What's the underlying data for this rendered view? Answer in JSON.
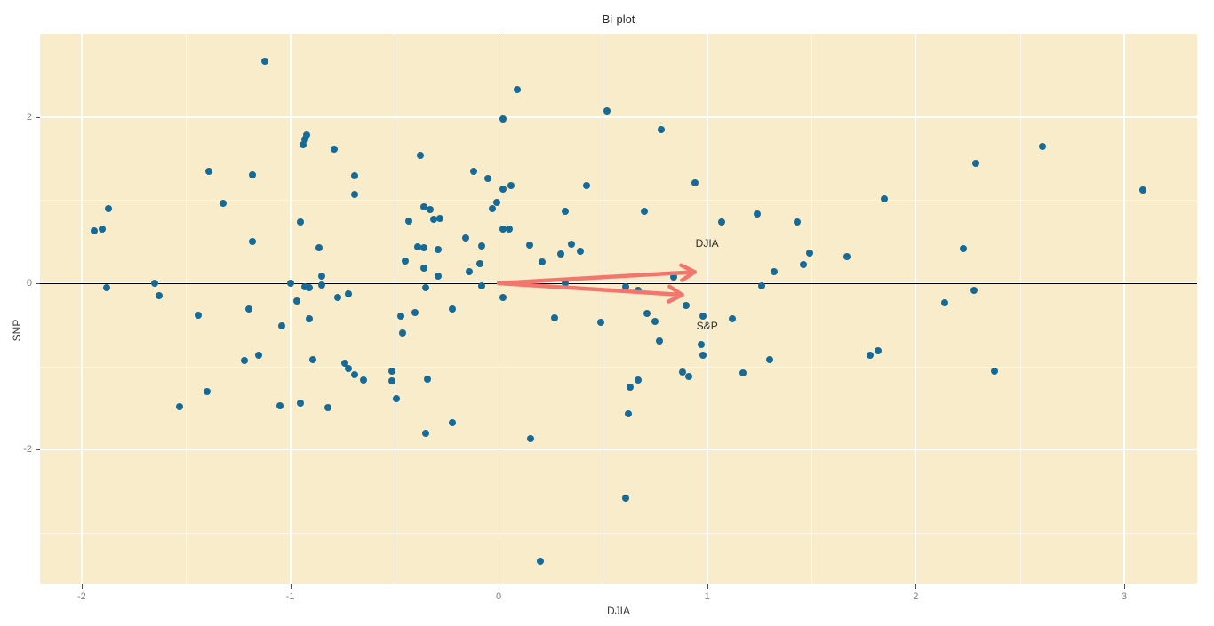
{
  "chart_data": {
    "type": "scatter",
    "title": "Bi-plot",
    "xlabel": "DJIA",
    "ylabel": "SNP",
    "xlim": [
      -2.2,
      3.35
    ],
    "ylim": [
      -3.62,
      3.0
    ],
    "x_ticks": [
      -2,
      -1,
      0,
      1,
      2,
      3
    ],
    "y_ticks": [
      -2,
      0,
      2
    ],
    "x_minor": [
      -1.5,
      -0.5,
      0.5,
      1.5,
      2.5
    ],
    "y_minor": [
      -3,
      -1,
      1
    ],
    "grid": "white major and minor gridlines on beige panel",
    "legend": "none",
    "origin_axes": true,
    "points": [
      [
        -1.12,
        2.67
      ],
      [
        0.09,
        2.33
      ],
      [
        0.52,
        2.07
      ],
      [
        0.02,
        1.98
      ],
      [
        0.78,
        1.85
      ],
      [
        2.61,
        1.64
      ],
      [
        -0.92,
        1.78
      ],
      [
        -0.93,
        1.73
      ],
      [
        -0.94,
        1.67
      ],
      [
        -0.79,
        1.61
      ],
      [
        -0.375,
        1.54
      ],
      [
        -1.39,
        1.35
      ],
      [
        -1.18,
        1.3
      ],
      [
        2.29,
        1.44
      ],
      [
        3.09,
        1.12
      ],
      [
        -0.69,
        1.29
      ],
      [
        -0.12,
        1.35
      ],
      [
        -0.05,
        1.26
      ],
      [
        0.02,
        1.13
      ],
      [
        0.06,
        1.17
      ],
      [
        0.42,
        1.17
      ],
      [
        0.94,
        1.21
      ],
      [
        1.85,
        1.01
      ],
      [
        -0.69,
        1.07
      ],
      [
        -1.32,
        0.96
      ],
      [
        -1.87,
        0.9
      ],
      [
        -0.95,
        0.74
      ],
      [
        -0.43,
        0.75
      ],
      [
        -0.36,
        0.92
      ],
      [
        -0.33,
        0.89
      ],
      [
        -0.31,
        0.77
      ],
      [
        -0.28,
        0.78
      ],
      [
        -0.01,
        0.97
      ],
      [
        -0.03,
        0.9
      ],
      [
        0.32,
        0.86
      ],
      [
        0.7,
        0.86
      ],
      [
        1.07,
        0.74
      ],
      [
        1.24,
        0.83
      ],
      [
        1.43,
        0.74
      ],
      [
        -1.94,
        0.63
      ],
      [
        -1.9,
        0.65
      ],
      [
        0.02,
        0.65
      ],
      [
        0.05,
        0.65
      ],
      [
        -1.18,
        0.5
      ],
      [
        -0.86,
        0.43
      ],
      [
        -0.39,
        0.44
      ],
      [
        -0.36,
        0.43
      ],
      [
        -0.45,
        0.27
      ],
      [
        -0.36,
        0.18
      ],
      [
        -0.85,
        0.09
      ],
      [
        -1.0,
        0.0
      ],
      [
        -1.65,
        0.0
      ],
      [
        -1.88,
        -0.05
      ],
      [
        -0.93,
        -0.04
      ],
      [
        -0.91,
        -0.05
      ],
      [
        -0.85,
        -0.02
      ],
      [
        -1.63,
        -0.15
      ],
      [
        -0.77,
        -0.17
      ],
      [
        -0.72,
        -0.13
      ],
      [
        -0.97,
        -0.21
      ],
      [
        -1.2,
        -0.31
      ],
      [
        -1.44,
        -0.38
      ],
      [
        -0.91,
        -0.43
      ],
      [
        -0.47,
        -0.4
      ],
      [
        -0.4,
        -0.35
      ],
      [
        -1.04,
        -0.51
      ],
      [
        -0.46,
        -0.6
      ],
      [
        -0.16,
        0.54
      ],
      [
        -0.08,
        0.45
      ],
      [
        -0.29,
        0.41
      ],
      [
        0.15,
        0.46
      ],
      [
        0.35,
        0.47
      ],
      [
        0.39,
        0.38
      ],
      [
        0.3,
        0.35
      ],
      [
        0.21,
        0.26
      ],
      [
        -0.09,
        0.23
      ],
      [
        -0.14,
        0.14
      ],
      [
        -0.29,
        0.08
      ],
      [
        -0.35,
        -0.05
      ],
      [
        -0.08,
        -0.03
      ],
      [
        0.02,
        -0.17
      ],
      [
        -0.22,
        -0.31
      ],
      [
        0.27,
        -0.42
      ],
      [
        0.49,
        -0.47
      ],
      [
        0.71,
        -0.36
      ],
      [
        0.75,
        -0.46
      ],
      [
        0.32,
        0.0
      ],
      [
        0.61,
        -0.04
      ],
      [
        0.67,
        -0.09
      ],
      [
        0.84,
        0.07
      ],
      [
        0.9,
        -0.27
      ],
      [
        0.98,
        -0.4
      ],
      [
        1.12,
        -0.43
      ],
      [
        1.26,
        -0.03
      ],
      [
        1.32,
        0.14
      ],
      [
        1.46,
        0.22
      ],
      [
        1.49,
        0.36
      ],
      [
        1.67,
        0.32
      ],
      [
        2.23,
        0.42
      ],
      [
        2.28,
        -0.09
      ],
      [
        2.14,
        -0.24
      ],
      [
        0.77,
        -0.69
      ],
      [
        0.97,
        -0.74
      ],
      [
        0.98,
        -0.86
      ],
      [
        1.3,
        -0.92
      ],
      [
        0.88,
        -1.07
      ],
      [
        0.91,
        -1.12
      ],
      [
        1.17,
        -1.08
      ],
      [
        0.67,
        -1.16
      ],
      [
        0.63,
        -1.25
      ],
      [
        0.62,
        -1.57
      ],
      [
        1.78,
        -0.87
      ],
      [
        1.82,
        -0.81
      ],
      [
        2.38,
        -1.06
      ],
      [
        -1.15,
        -0.86
      ],
      [
        -1.22,
        -0.93
      ],
      [
        -0.89,
        -0.92
      ],
      [
        -0.74,
        -0.96
      ],
      [
        -0.72,
        -1.03
      ],
      [
        -0.69,
        -1.1
      ],
      [
        -0.65,
        -1.16
      ],
      [
        -0.51,
        -1.06
      ],
      [
        -0.51,
        -1.17
      ],
      [
        -0.34,
        -1.15
      ],
      [
        -1.4,
        -1.3
      ],
      [
        -1.53,
        -1.48
      ],
      [
        -0.49,
        -1.39
      ],
      [
        -1.05,
        -1.47
      ],
      [
        -0.95,
        -1.44
      ],
      [
        -0.82,
        -1.5
      ],
      [
        -0.22,
        -1.68
      ],
      [
        -0.35,
        -1.81
      ],
      [
        0.155,
        -1.87
      ],
      [
        0.2,
        -3.34
      ],
      [
        0.61,
        -2.58
      ]
    ],
    "arrows": [
      {
        "label": "DJIA",
        "from": [
          0,
          0
        ],
        "to": [
          0.94,
          0.135
        ],
        "label_at": [
          1.0,
          0.48
        ]
      },
      {
        "label": "S&P",
        "from": [
          0,
          0
        ],
        "to": [
          0.88,
          -0.14
        ],
        "label_at": [
          1.0,
          -0.51
        ]
      }
    ],
    "colors": {
      "panel_bg": "#F8ECCB",
      "page_bg": "#FFFFFF",
      "point": "#166A97",
      "arrow": "#F3766E",
      "grid_major": "#FFFFFF",
      "grid_minor": "rgba(255,255,255,0.6)",
      "axis_line": "#000000",
      "tick_label": "#7E7E7E",
      "axis_title": "#3A3A3A",
      "title": "#2B2B2B"
    }
  }
}
